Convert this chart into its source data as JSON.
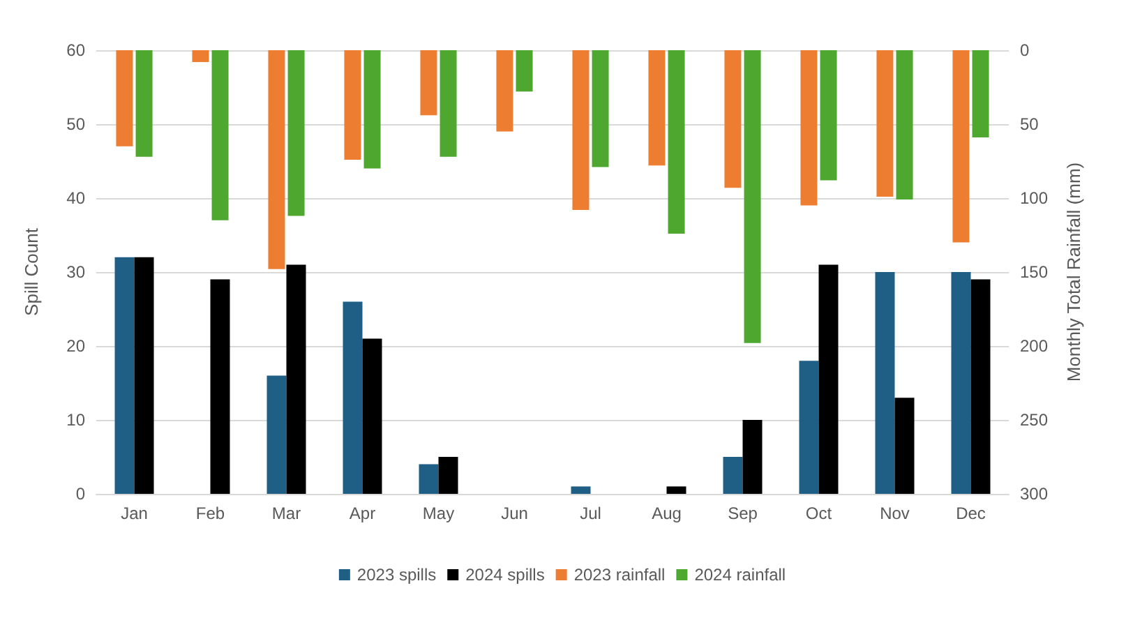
{
  "chart_data": {
    "type": "bar",
    "categories": [
      "Jan",
      "Feb",
      "Mar",
      "Apr",
      "May",
      "Jun",
      "Jul",
      "Aug",
      "Sep",
      "Oct",
      "Nov",
      "Dec"
    ],
    "series": [
      {
        "name": "2023 spills",
        "color": "#1f5f86",
        "values": [
          32,
          0,
          16,
          26,
          4,
          0,
          1,
          0,
          5,
          18,
          30,
          30
        ]
      },
      {
        "name": "2024 spills",
        "color": "#000000",
        "values": [
          32,
          29,
          31,
          21,
          5,
          0,
          0,
          1,
          10,
          31,
          13,
          29
        ]
      },
      {
        "name": "2023 rainfall",
        "color": "#ed7d31",
        "axis": "y2",
        "values": [
          65,
          8,
          148,
          74,
          44,
          55,
          108,
          78,
          93,
          105,
          99,
          130
        ]
      },
      {
        "name": "2024 rainfall",
        "color": "#4ea72e",
        "axis": "y2",
        "values": [
          72,
          115,
          112,
          80,
          72,
          28,
          79,
          124,
          198,
          88,
          101,
          59
        ]
      }
    ],
    "ylabel": "Spill Count",
    "y2label": "Monthly Total Rainfall (mm)",
    "ylim": [
      0,
      60
    ],
    "yticks": [
      0,
      10,
      20,
      30,
      40,
      50,
      60
    ],
    "y2lim": [
      300,
      0
    ],
    "y2ticks": [
      0,
      50,
      100,
      150,
      200,
      250,
      300
    ],
    "grid": "y",
    "legend": "bottom"
  }
}
